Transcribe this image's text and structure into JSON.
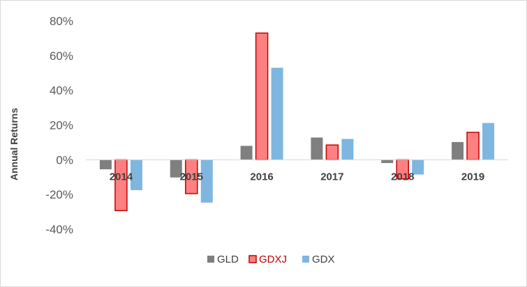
{
  "chart_data": {
    "type": "bar",
    "title": "",
    "xlabel": "",
    "ylabel": "Annual Returns",
    "categories": [
      "2014",
      "2015",
      "2016",
      "2017",
      "2018",
      "2019"
    ],
    "series": [
      {
        "name": "GLD",
        "values": [
          -5.5,
          -10.2,
          8.0,
          12.8,
          -1.9,
          10.2
        ],
        "color": "#7f7f7f",
        "stroke": "none"
      },
      {
        "name": "GDXJ",
        "values": [
          -29.3,
          -19.5,
          73.0,
          8.5,
          -11.0,
          15.8
        ],
        "color": "#ff8080",
        "stroke": "#c00000"
      },
      {
        "name": "GDX",
        "values": [
          -17.5,
          -24.7,
          53.0,
          12.0,
          -8.5,
          21.2
        ],
        "color": "#7eb6e0",
        "stroke": "none"
      }
    ],
    "ylim": [
      -40,
      80
    ],
    "yticks": [
      -40,
      -20,
      0,
      20,
      40,
      60,
      80
    ],
    "ytick_labels": [
      "-40%",
      "-20%",
      "0%",
      "20%",
      "40%",
      "60%",
      "80%"
    ],
    "legend_position": "bottom",
    "legend_colors": {
      "GLD": "#404040",
      "GDXJ": "#c00000",
      "GDX": "#404040"
    },
    "grid": false
  }
}
